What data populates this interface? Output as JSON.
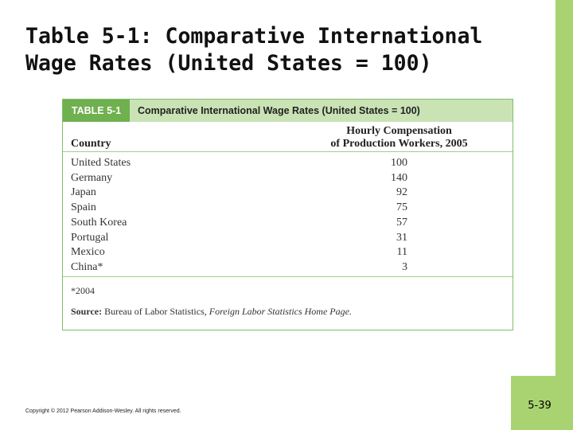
{
  "slide_title": [
    "Table 5-1:  Comparative International",
    "Wage Rates (United States = 100)"
  ],
  "table": {
    "label": "TABLE 5-1",
    "caption": "Comparative International Wage Rates (United States = 100)",
    "columns": [
      "Country",
      [
        "Hourly Compensation",
        "of Production Workers, 2005"
      ]
    ],
    "rows": [
      [
        "United States",
        100
      ],
      [
        "Germany",
        140
      ],
      [
        "Japan",
        92
      ],
      [
        "Spain",
        75
      ],
      [
        "South Korea",
        57
      ],
      [
        "Portugal",
        31
      ],
      [
        "Mexico",
        11
      ],
      [
        "China*",
        3
      ]
    ],
    "footnote": "*2004",
    "source": {
      "label": "Source:",
      "text": "Bureau of Labor Statistics,",
      "italic": "Foreign Labor Statistics Home Page."
    }
  },
  "copyright": "Copyright © 2012 Pearson Addison-Wesley. All rights reserved.",
  "page_number": "5-39"
}
